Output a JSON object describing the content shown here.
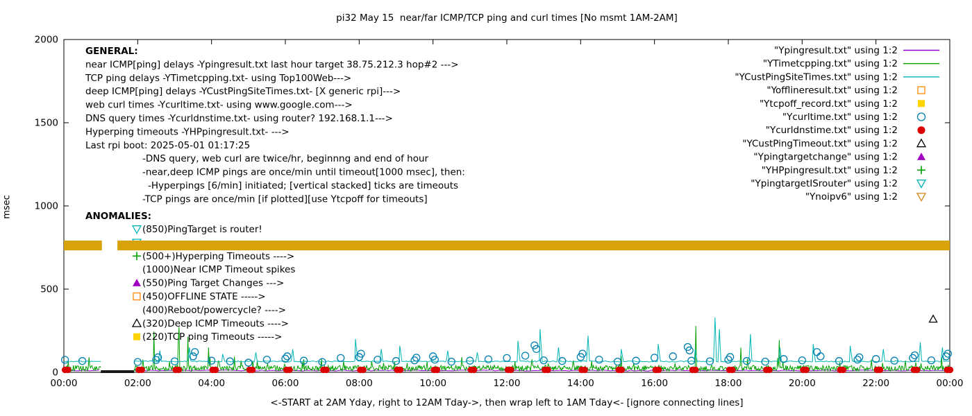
{
  "chart_data": {
    "type": "mixed",
    "title": "pi32 May 15  near/far ICMP/TCP ping and curl times [No msmt 1AM-2AM]",
    "ylabel": "msec",
    "xlabel": "<-START at 2AM Yday, right to 12AM Tday->, then wrap left to 1AM Tday<- [ignore connecting lines]",
    "ylim": [
      0,
      2000
    ],
    "xlim_hours": [
      0,
      24
    ],
    "y_ticks": [
      0,
      500,
      1000,
      1500,
      2000
    ],
    "x_ticks": [
      "00:00",
      "02:00",
      "04:00",
      "06:00",
      "08:00",
      "10:00",
      "12:00",
      "14:00",
      "16:00",
      "18:00",
      "20:00",
      "22:00",
      "00:00"
    ],
    "no_msmt_window_hours": [
      1.0,
      1.9
    ],
    "series": [
      {
        "name": "Ypingresult",
        "legend_label": "\"Ypingresult.txt\" using 1:2",
        "style": "line",
        "color": "#9400d3",
        "gen": {
          "baseline": 8,
          "noise": 6,
          "seed": 3,
          "step": 0.08
        },
        "gap": [
          1.0,
          1.9
        ]
      },
      {
        "name": "YTimetcpping",
        "legend_label": "\"YTimetcpping.txt\" using 1:2",
        "style": "line",
        "color": "#00a000",
        "gen": {
          "baseline": 8,
          "noise": 34,
          "seed": 5,
          "step": 0.02,
          "spike_chance": 0.05,
          "spike_extra": 70,
          "rare_chance": 0.006,
          "rare_extra": 200
        },
        "gap": [
          1.0,
          1.9
        ]
      },
      {
        "name": "YCustPingSiteTimes",
        "legend_label": "\"YCustPingSiteTimes.txt\" using 1:2",
        "style": "line",
        "color": "#00b5b5",
        "gen": {
          "baseline": 62,
          "noise": 7,
          "seed": 9,
          "step": 0.04
        },
        "gap": [
          1.0,
          1.9
        ],
        "spikes": [
          [
            2.6,
            130
          ],
          [
            3.4,
            150
          ],
          [
            4.3,
            110
          ],
          [
            5.2,
            120
          ],
          [
            6.2,
            140
          ],
          [
            7.9,
            200
          ],
          [
            8.6,
            140
          ],
          [
            9.1,
            160
          ],
          [
            10.4,
            130
          ],
          [
            11.2,
            120
          ],
          [
            12.3,
            190
          ],
          [
            12.9,
            260
          ],
          [
            13.4,
            150
          ],
          [
            14.2,
            220
          ],
          [
            15.1,
            140
          ],
          [
            16.1,
            170
          ],
          [
            17.1,
            140
          ],
          [
            17.64,
            330
          ],
          [
            17.76,
            260
          ],
          [
            18.6,
            230
          ],
          [
            19.4,
            150
          ],
          [
            20.3,
            170
          ],
          [
            21.3,
            160
          ],
          [
            22.2,
            140
          ],
          [
            23.2,
            180
          ],
          [
            23.8,
            150
          ]
        ]
      },
      {
        "name": "Yofflineresult",
        "legend_label": "\"Yofflineresult.txt\" using 1:2",
        "style": "points",
        "marker": "square-open",
        "color": "#ff8800",
        "points": []
      },
      {
        "name": "Ytcpoff_record",
        "legend_label": "\"Ytcpoff_record.txt\" using 1:2",
        "style": "points",
        "marker": "square-filled",
        "color": "#ffd300",
        "points": []
      },
      {
        "name": "Ycurltime",
        "legend_label": "\"Ycurltime.txt\" using 1:2",
        "style": "points",
        "marker": "circle-open",
        "color": "#0080b0",
        "points": [
          [
            0.03,
            75
          ],
          [
            0.5,
            68
          ],
          [
            2.0,
            62
          ],
          [
            2.5,
            74
          ],
          [
            2.55,
            90
          ],
          [
            3.0,
            66
          ],
          [
            3.5,
            96
          ],
          [
            3.55,
            122
          ],
          [
            4.0,
            70
          ],
          [
            4.5,
            66
          ],
          [
            5.0,
            58
          ],
          [
            5.5,
            76
          ],
          [
            6.0,
            82
          ],
          [
            6.05,
            96
          ],
          [
            6.5,
            70
          ],
          [
            7.0,
            62
          ],
          [
            7.5,
            86
          ],
          [
            8.0,
            92
          ],
          [
            8.05,
            112
          ],
          [
            8.5,
            76
          ],
          [
            9.0,
            68
          ],
          [
            9.5,
            72
          ],
          [
            9.55,
            88
          ],
          [
            10.0,
            96
          ],
          [
            10.05,
            76
          ],
          [
            10.5,
            64
          ],
          [
            11.0,
            70
          ],
          [
            11.5,
            78
          ],
          [
            12.0,
            86
          ],
          [
            12.5,
            100
          ],
          [
            12.75,
            162
          ],
          [
            12.8,
            140
          ],
          [
            13.0,
            72
          ],
          [
            13.5,
            68
          ],
          [
            14.0,
            92
          ],
          [
            14.05,
            112
          ],
          [
            14.5,
            76
          ],
          [
            15.0,
            64
          ],
          [
            15.5,
            70
          ],
          [
            16.0,
            88
          ],
          [
            16.5,
            96
          ],
          [
            16.9,
            152
          ],
          [
            16.95,
            132
          ],
          [
            17.0,
            70
          ],
          [
            17.5,
            66
          ],
          [
            18.0,
            76
          ],
          [
            18.05,
            92
          ],
          [
            18.5,
            68
          ],
          [
            19.0,
            64
          ],
          [
            19.5,
            80
          ],
          [
            20.0,
            72
          ],
          [
            20.4,
            122
          ],
          [
            20.5,
            96
          ],
          [
            21.0,
            68
          ],
          [
            21.5,
            76
          ],
          [
            21.55,
            90
          ],
          [
            22.0,
            80
          ],
          [
            22.5,
            70
          ],
          [
            23.0,
            86
          ],
          [
            23.05,
            102
          ],
          [
            23.5,
            72
          ],
          [
            23.9,
            96
          ],
          [
            23.95,
            112
          ]
        ]
      },
      {
        "name": "Ycurldnstime",
        "legend_label": "\"Ycurldnstime.txt\" using 1:2",
        "style": "hour-dots",
        "marker": "circle-filled",
        "color": "#dd0000",
        "hours": [
          0,
          2,
          3,
          4,
          5,
          6,
          7,
          8,
          9,
          10,
          11,
          12,
          13,
          14,
          15,
          16,
          17,
          18,
          19,
          20,
          21,
          22,
          23,
          23.9
        ],
        "y": 15
      },
      {
        "name": "YCustPingTimeout",
        "legend_label": "\"YCustPingTimeout.txt\" using 1:2",
        "style": "points",
        "marker": "triangle-up-open",
        "color": "#000000",
        "points": [
          [
            23.55,
            320
          ]
        ]
      },
      {
        "name": "Ypingtargetchange",
        "legend_label": "\"Ypingtargetchange\" using 1:2",
        "style": "points",
        "marker": "triangle-up-filled",
        "color": "#a000c0",
        "points": []
      },
      {
        "name": "YHPpingresult",
        "legend_label": "\"YHPpingresult.txt\" using 1:2",
        "style": "points",
        "marker": "plus",
        "color": "#00a000",
        "points": []
      },
      {
        "name": "YpingtargetISrouter",
        "legend_label": "\"YpingtargetISrouter\" using 1:2",
        "style": "points",
        "marker": "triangle-down-open",
        "color": "#00b5b5",
        "points": []
      },
      {
        "name": "Ynoipv6",
        "legend_label": "\"Ynoipv6\" using 1:2",
        "style": "band",
        "marker": "triangle-down-open",
        "color": "#d6861a",
        "band": {
          "y_low": 733,
          "y_high": 792,
          "color": "#d8a20a",
          "segments": [
            [
              0,
              1.03
            ],
            [
              1.45,
              24
            ]
          ]
        }
      }
    ],
    "no_msmt_zero_bar": {
      "x_from": 1.0,
      "x_to": 1.9,
      "y": 4,
      "color": "#1a1a1a"
    },
    "annotations": {
      "general": {
        "heading": "GENERAL:",
        "lines": [
          {
            "text": "near ICMP[ping] delays -Ypingresult.txt last hour target 38.75.212.3 hop#2 --->",
            "indent": 0
          },
          {
            "text": "TCP ping delays -YTimetcpping.txt- using Top100Web--->",
            "indent": 0
          },
          {
            "text": "deep ICMP[ping] delays -YCustPingSiteTimes.txt- [X generic rpi]--->",
            "indent": 0
          },
          {
            "text": "web curl times -Ycurltime.txt- using www.google.com--->",
            "indent": 0
          },
          {
            "text": "DNS query times -Ycurldnstime.txt- using router? 192.168.1.1--->",
            "indent": 0
          },
          {
            "text": "Hyperping timeouts -YHPpingresult.txt- --->",
            "indent": 0
          },
          {
            "text": "Last rpi boot: 2025-05-01 01:17:25",
            "indent": 0
          },
          {
            "text": "-DNS query, web curl are twice/hr, beginnng and end of hour",
            "indent": 1
          },
          {
            "text": "-near,deep ICMP pings are once/min until timeout[1000 msec], then:",
            "indent": 1
          },
          {
            "text": "-Hyperpings [6/min] initiated; [vertical stacked] ticks are timeouts",
            "indent": 2
          },
          {
            "text": "-TCP pings are once/min [if plotted][use Ytcpoff for timeouts]",
            "indent": 1
          }
        ]
      },
      "anomalies": {
        "heading": "ANOMALIES:",
        "items": [
          {
            "marker": "triangle-down-open",
            "color": "#00b5b5",
            "label": "(850)PingTarget is router!"
          },
          {
            "marker": "triangle-down-open",
            "color": "#00b5b5",
            "label": ""
          },
          {
            "marker": "plus",
            "color": "#00a000",
            "label": "(500+)Hyperping Timeouts ---->"
          },
          {
            "marker": "none",
            "color": "#000000",
            "label": "(1000)Near ICMP Timeout spikes"
          },
          {
            "marker": "triangle-up-filled",
            "color": "#a000c0",
            "label": "(550)Ping Target Changes --->"
          },
          {
            "marker": "square-open",
            "color": "#ff8800",
            "label": "(450)OFFLINE STATE ----->"
          },
          {
            "marker": "none",
            "color": "#000000",
            "label": "(400)Reboot/powercycle? ---->"
          },
          {
            "marker": "triangle-up-open",
            "color": "#000000",
            "label": "(320)Deep ICMP Timeouts ---->"
          },
          {
            "marker": "square-filled",
            "color": "#ffd300",
            "label": "(220)TCP ping Timeouts ----->"
          }
        ]
      }
    }
  }
}
